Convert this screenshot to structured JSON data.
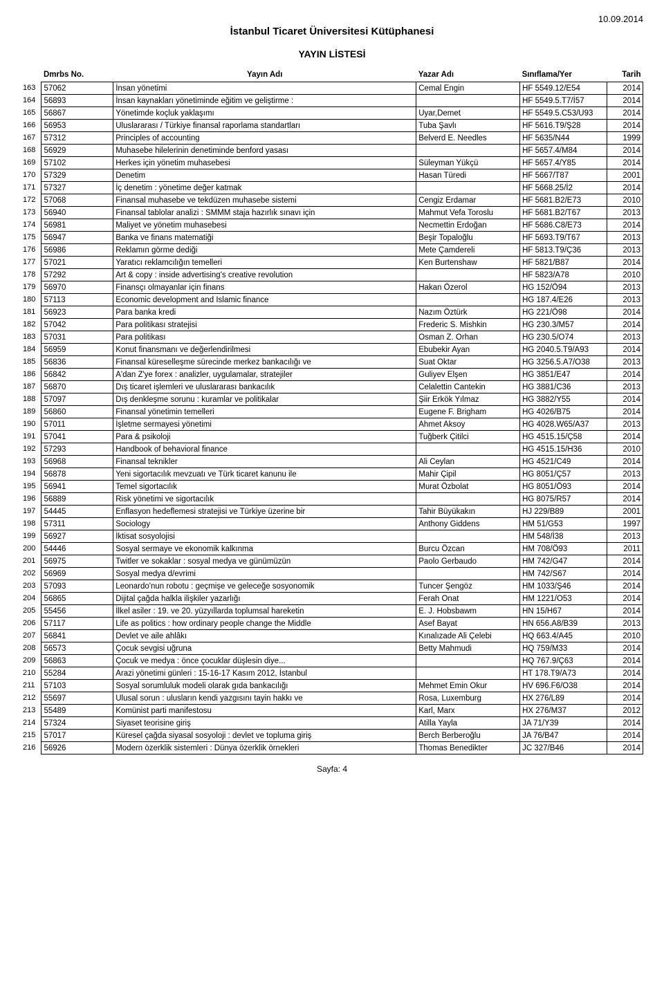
{
  "header": {
    "date": "10.09.2014",
    "title_main": "İstanbul Ticaret Üniversitesi Kütüphanesi",
    "title_sub": "YAYIN LİSTESİ"
  },
  "columns": {
    "dmrbs": "Dmrbs No.",
    "yayin": "Yayın Adı",
    "yazar": "Yazar Adı",
    "sinif": "Sınıflama/Yer",
    "tarih": "Tarih"
  },
  "rows": [
    {
      "idx": "163",
      "code": "57062",
      "title": "İnsan yönetimi",
      "author": "Cemal Engin",
      "classif": "HF 5549.12/E54",
      "year": "2014"
    },
    {
      "idx": "164",
      "code": "56893",
      "title": "İnsan kaynakları yönetiminde eğitim ve geliştirme :",
      "author": "",
      "classif": "HF 5549.5.T7/İ57",
      "year": "2014"
    },
    {
      "idx": "165",
      "code": "56867",
      "title": "Yönetimde koçluk yaklaşımı",
      "author": "Uyar,Demet",
      "classif": "HF 5549.5.C53/U93",
      "year": "2014"
    },
    {
      "idx": "166",
      "code": "56953",
      "title": "Uluslararası / Türkiye finansal raporlama standartları",
      "author": "Tuba Şavlı",
      "classif": "HF 5616.T9/Ş28",
      "year": "2014"
    },
    {
      "idx": "167",
      "code": "57312",
      "title": "Principles of accounting",
      "author": "Belverd E. Needles",
      "classif": "HF 5635/N44",
      "year": "1999"
    },
    {
      "idx": "168",
      "code": "56929",
      "title": "Muhasebe hilelerinin denetiminde benford yasası",
      "author": "",
      "classif": "HF 5657.4/M84",
      "year": "2014"
    },
    {
      "idx": "169",
      "code": "57102",
      "title": "Herkes için yönetim muhasebesi",
      "author": "Süleyman Yükçü",
      "classif": "HF 5657.4/Y85",
      "year": "2014"
    },
    {
      "idx": "170",
      "code": "57329",
      "title": "Denetim",
      "author": "Hasan Türedi",
      "classif": "HF 5667/T87",
      "year": "2001"
    },
    {
      "idx": "171",
      "code": "57327",
      "title": "İç denetim : yönetime değer katmak",
      "author": "",
      "classif": "HF 5668.25/İ2",
      "year": "2014"
    },
    {
      "idx": "172",
      "code": "57068",
      "title": "Finansal muhasebe ve tekdüzen muhasebe sistemi",
      "author": "Cengiz Erdamar",
      "classif": "HF 5681.B2/E73",
      "year": "2010"
    },
    {
      "idx": "173",
      "code": "56940",
      "title": "Finansal tablolar analizi : SMMM staja hazırlık sınavı için",
      "author": "Mahmut Vefa Toroslu",
      "classif": "HF 5681.B2/T67",
      "year": "2013"
    },
    {
      "idx": "174",
      "code": "56981",
      "title": "Maliyet ve yönetim muhasebesi",
      "author": "Necmettin Erdoğan",
      "classif": "HF 5686.C8/E73",
      "year": "2014"
    },
    {
      "idx": "175",
      "code": "56947",
      "title": "Banka ve finans matematiği",
      "author": "Beşir Topaloğlu",
      "classif": "HF 5693.T9/T67",
      "year": "2013"
    },
    {
      "idx": "176",
      "code": "56986",
      "title": "Reklamın görme dediği",
      "author": "Mete Çamdereli",
      "classif": "HF 5813.T9/Ç36",
      "year": "2013"
    },
    {
      "idx": "177",
      "code": "57021",
      "title": "Yaratıcı reklamcılığın temelleri",
      "author": "Ken Burtenshaw",
      "classif": "HF 5821/B87",
      "year": "2014"
    },
    {
      "idx": "178",
      "code": "57292",
      "title": "Art & copy : inside advertising's creative revolution",
      "author": "",
      "classif": "HF 5823/A78",
      "year": "2010"
    },
    {
      "idx": "179",
      "code": "56970",
      "title": "Finansçı olmayanlar için finans",
      "author": "Hakan Özerol",
      "classif": "HG 152/Ö94",
      "year": "2013"
    },
    {
      "idx": "180",
      "code": "57113",
      "title": "Economic development and Islamic finance",
      "author": "",
      "classif": "HG 187.4/E26",
      "year": "2013"
    },
    {
      "idx": "181",
      "code": "56923",
      "title": "Para banka kredi",
      "author": "Nazım Öztürk",
      "classif": "HG 221/Ö98",
      "year": "2014"
    },
    {
      "idx": "182",
      "code": "57042",
      "title": "Para politikası stratejisi",
      "author": "Frederic S. Mishkin",
      "classif": "HG 230.3/M57",
      "year": "2014"
    },
    {
      "idx": "183",
      "code": "57031",
      "title": "Para politikası",
      "author": "Osman Z. Orhan",
      "classif": "HG 230.5/O74",
      "year": "2013"
    },
    {
      "idx": "184",
      "code": "56959",
      "title": "Konut finansmanı ve değerlendirilmesi",
      "author": "Ebubekir Ayan",
      "classif": "HG 2040.5.T9/A93",
      "year": "2014"
    },
    {
      "idx": "185",
      "code": "56836",
      "title": "Finansal küreselleşme sürecinde merkez bankacılığı ve",
      "author": "Suat Oktar",
      "classif": "HG 3256.5.A7/O38",
      "year": "2013"
    },
    {
      "idx": "186",
      "code": "56842",
      "title": "A'dan Z'ye forex  : analizler, uygulamalar, stratejiler",
      "author": "Guliyev Elşen",
      "classif": "HG 3851/E47",
      "year": "2014"
    },
    {
      "idx": "187",
      "code": "56870",
      "title": "Dış ticaret işlemleri ve uluslararası bankacılık",
      "author": "Celalettin Cantekin",
      "classif": "HG 3881/C36",
      "year": "2013"
    },
    {
      "idx": "188",
      "code": "57097",
      "title": "Dış denkleşme sorunu : kuramlar ve politikalar",
      "author": "Şiir Erkök Yılmaz",
      "classif": "HG 3882/Y55",
      "year": "2014"
    },
    {
      "idx": "189",
      "code": "56860",
      "title": "Finansal yönetimin temelleri",
      "author": "Eugene F. Brigham",
      "classif": "HG 4026/B75",
      "year": "2014"
    },
    {
      "idx": "190",
      "code": "57011",
      "title": "İşletme sermayesi yönetimi",
      "author": "Ahmet Aksoy",
      "classif": "HG 4028.W65/A37",
      "year": "2013"
    },
    {
      "idx": "191",
      "code": "57041",
      "title": "Para & psikoloji",
      "author": "Tuğberk Çitilci",
      "classif": "HG 4515.15/Ç58",
      "year": "2014"
    },
    {
      "idx": "192",
      "code": "57293",
      "title": "Handbook of behavioral finance",
      "author": "",
      "classif": "HG 4515.15/H36",
      "year": "2010"
    },
    {
      "idx": "193",
      "code": "56968",
      "title": "Finansal teknikler",
      "author": "Ali Ceylan",
      "classif": "HG 4521/C49",
      "year": "2014"
    },
    {
      "idx": "194",
      "code": "56878",
      "title": "Yeni sigortacılık mevzuatı ve Türk ticaret kanunu ile",
      "author": "Mahir Çipil",
      "classif": "HG 8051/Ç57",
      "year": "2013"
    },
    {
      "idx": "195",
      "code": "56941",
      "title": "Temel sigortacılık",
      "author": "Murat Özbolat",
      "classif": "HG 8051/Ö93",
      "year": "2014"
    },
    {
      "idx": "196",
      "code": "56889",
      "title": "Risk yönetimi ve sigortacılık",
      "author": "",
      "classif": "HG 8075/R57",
      "year": "2014"
    },
    {
      "idx": "197",
      "code": "54445",
      "title": "Enflasyon hedeflemesi stratejisi ve Türkiye üzerine bir",
      "author": "Tahir Büyükakın",
      "classif": "HJ 229/B89",
      "year": "2001"
    },
    {
      "idx": "198",
      "code": "57311",
      "title": "Sociology",
      "author": "Anthony Giddens",
      "classif": "HM 51/G53",
      "year": "1997"
    },
    {
      "idx": "199",
      "code": "56927",
      "title": "İktisat sosyolojisi",
      "author": "",
      "classif": "HM 548/İ38",
      "year": "2013"
    },
    {
      "idx": "200",
      "code": "54446",
      "title": "Sosyal sermaye ve ekonomik kalkınma",
      "author": "Burcu Özcan",
      "classif": "HM 708/Ö93",
      "year": "2011"
    },
    {
      "idx": "201",
      "code": "56975",
      "title": "Twitler ve sokaklar : sosyal medya ve günümüzün",
      "author": "Paolo Gerbaudo",
      "classif": "HM 742/G47",
      "year": "2014"
    },
    {
      "idx": "202",
      "code": "56969",
      "title": "Sosyal medya d/evrimi",
      "author": "",
      "classif": "HM 742/S67",
      "year": "2014"
    },
    {
      "idx": "203",
      "code": "57093",
      "title": "Leonardo'nun robotu : geçmişe ve geleceğe sosyonomik",
      "author": "Tuncer Şengöz",
      "classif": "HM 1033/Ş46",
      "year": "2014"
    },
    {
      "idx": "204",
      "code": "56865",
      "title": "Dijital çağda halkla ilişkiler yazarlığı",
      "author": "Ferah Onat",
      "classif": "HM 1221/O53",
      "year": "2014"
    },
    {
      "idx": "205",
      "code": "55456",
      "title": "İlkel asiler : 19. ve 20. yüzyıllarda toplumsal hareketin",
      "author": "E. J. Hobsbawm",
      "classif": "HN 15/H67",
      "year": "2014"
    },
    {
      "idx": "206",
      "code": "57117",
      "title": "Life as politics : how ordinary people change the Middle",
      "author": "Asef Bayat",
      "classif": "HN 656.A8/B39",
      "year": "2013"
    },
    {
      "idx": "207",
      "code": "56841",
      "title": "Devlet ve aile ahlâkı",
      "author": "Kınalızade Ali Çelebi",
      "classif": "HQ 663.4/A45",
      "year": "2010"
    },
    {
      "idx": "208",
      "code": "56573",
      "title": "Çocuk sevgisi uğruna",
      "author": "Betty Mahmudi",
      "classif": "HQ 759/M33",
      "year": "2014"
    },
    {
      "idx": "209",
      "code": "56863",
      "title": "Çocuk ve medya : önce çocuklar düşlesin diye...",
      "author": "",
      "classif": "HQ 767.9/Ç63",
      "year": "2014"
    },
    {
      "idx": "210",
      "code": "55284",
      "title": "Arazi yönetimi günleri : 15-16-17 Kasım 2012, İstanbul",
      "author": "",
      "classif": "HT 178.T9/A73",
      "year": "2014"
    },
    {
      "idx": "211",
      "code": "57103",
      "title": "Sosyal sorumluluk modeli olarak gıda bankacılığı",
      "author": "Mehmet Emin Okur",
      "classif": "HV 696.F6/O38",
      "year": "2014"
    },
    {
      "idx": "212",
      "code": "55697",
      "title": "Ulusal sorun : ulusların kendi yazgısını tayin hakkı ve",
      "author": "Rosa, Luxemburg",
      "classif": "HX 276/L89",
      "year": "2014"
    },
    {
      "idx": "213",
      "code": "55489",
      "title": "Komünist parti manifestosu",
      "author": "Karl, Marx",
      "classif": "HX 276/M37",
      "year": "2012"
    },
    {
      "idx": "214",
      "code": "57324",
      "title": "Siyaset teorisine giriş",
      "author": "Atilla Yayla",
      "classif": "JA 71/Y39",
      "year": "2014"
    },
    {
      "idx": "215",
      "code": "57017",
      "title": "Küresel çağda siyasal sosyoloji : devlet ve topluma giriş",
      "author": "Berch Berberoğlu",
      "classif": "JA 76/B47",
      "year": "2014"
    },
    {
      "idx": "216",
      "code": "56926",
      "title": "Modern özerklik sistemleri : Dünya özerklik örnekleri",
      "author": "Thomas Benedikter",
      "classif": "JC 327/B46",
      "year": "2014"
    }
  ],
  "footer": {
    "page": "Sayfa: 4"
  }
}
